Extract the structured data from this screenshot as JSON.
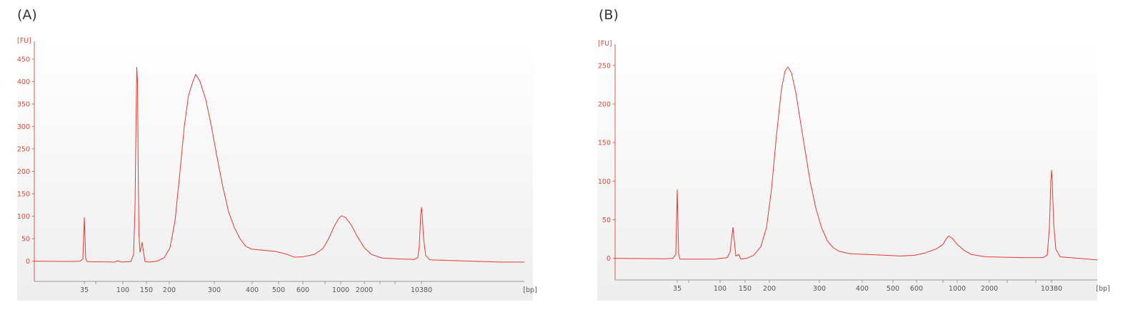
{
  "panels": {
    "a": {
      "label": "(A)"
    },
    "b": {
      "label": "(B)"
    }
  },
  "colors": {
    "trace": "#e8382f",
    "axis_text": "#e0453b",
    "axis": "#e05a50",
    "bottom_axis": "#999999",
    "bg_top": "#ffffff",
    "bg_bottom": "#eeeeee"
  },
  "chart_data": [
    {
      "type": "line",
      "panel": "A",
      "title": "",
      "ylabel": "[FU]",
      "xlabel": "[bp]",
      "x_scale": "ladder (non-linear)",
      "ylim": [
        -45,
        480
      ],
      "yticks": [
        0,
        50,
        100,
        150,
        200,
        250,
        300,
        350,
        400,
        450
      ],
      "xticks": [
        "35",
        "100",
        "150",
        "200",
        "300",
        "400",
        "500",
        "600",
        "1000",
        "2000",
        "10380"
      ],
      "grid": false,
      "legend": "none",
      "series": [
        {
          "peaks": [
            {
              "bp": "35",
              "fu": 97
            },
            {
              "bp": "~120",
              "fu": 432
            },
            {
              "bp": "~135",
              "fu": 42
            },
            {
              "bp": "~260",
              "fu": 416
            },
            {
              "bp": "~1050",
              "fu": 101
            },
            {
              "bp": "10380",
              "fu": 120
            }
          ]
        }
      ]
    },
    {
      "type": "line",
      "panel": "B",
      "title": "",
      "ylabel": "[FU]",
      "xlabel": "[bp]",
      "x_scale": "ladder (non-linear)",
      "ylim": [
        -28,
        272
      ],
      "yticks": [
        0,
        50,
        100,
        150,
        200,
        250
      ],
      "xticks": [
        "35",
        "100",
        "150",
        "200",
        "300",
        "400",
        "500",
        "600",
        "1000",
        "2000",
        "10380"
      ],
      "grid": false,
      "legend": "none",
      "series": [
        {
          "peaks": [
            {
              "bp": "35",
              "fu": 89
            },
            {
              "bp": "~115",
              "fu": 40
            },
            {
              "bp": "~230",
              "fu": 248
            },
            {
              "bp": "~850",
              "fu": 29
            },
            {
              "bp": "10380",
              "fu": 114
            }
          ]
        }
      ]
    }
  ]
}
